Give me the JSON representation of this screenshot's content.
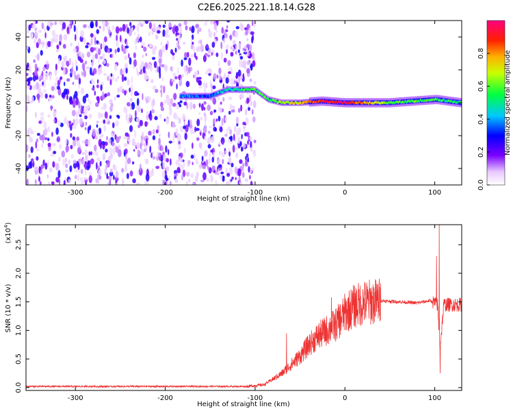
{
  "title": "C2E6.2025.221.18.14.G28",
  "chart_data": [
    {
      "type": "heatmap",
      "title": "C2E6.2025.221.18.14.G28",
      "xlabel": "Height of straight line (km)",
      "ylabel": "Frequency (Hz)",
      "xlim": [
        -355,
        130
      ],
      "ylim": [
        -50,
        50
      ],
      "x_ticks": [
        -300,
        -200,
        -100,
        0,
        100
      ],
      "y_ticks": [
        -40,
        -20,
        0,
        20,
        40
      ],
      "x_tick_labels": [
        "-300",
        "-200",
        "-100",
        "0",
        "100"
      ],
      "y_tick_labels": [
        "-40",
        "-20",
        "0",
        "20",
        "40"
      ],
      "colorbar": {
        "label": "Normalized spectral amplitude",
        "range": [
          0.0,
          1.0
        ],
        "ticks": [
          0.0,
          0.2,
          0.4,
          0.6,
          0.8
        ],
        "tick_labels": [
          "0.0",
          "0.2",
          "0.4",
          "0.6",
          "0.8"
        ],
        "colormap": "rainbow (white, violet, blue, cyan, green, yellow, orange, red, magenta)"
      },
      "noise_region": {
        "x": [
          -355,
          -100
        ],
        "amplitude": [
          0.05,
          0.3
        ]
      },
      "signal_band": {
        "description": "narrow band near 0 Hz emerging around -185 km and strengthening to the right",
        "points": [
          {
            "x": -183,
            "freq": 4,
            "amplitude": 0.4
          },
          {
            "x": -150,
            "freq": 4,
            "amplitude": 0.3
          },
          {
            "x": -130,
            "freq": 8,
            "amplitude": 0.45
          },
          {
            "x": -100,
            "freq": 8,
            "amplitude": 0.6
          },
          {
            "x": -85,
            "freq": 2,
            "amplitude": 0.55
          },
          {
            "x": -70,
            "freq": 0,
            "amplitude": 0.65
          },
          {
            "x": -50,
            "freq": 0,
            "amplitude": 0.75
          },
          {
            "x": -25,
            "freq": 1,
            "amplitude": 0.9
          },
          {
            "x": 0,
            "freq": 0,
            "amplitude": 0.95
          },
          {
            "x": 50,
            "freq": 0,
            "amplitude": 0.6
          },
          {
            "x": 102,
            "freq": 2,
            "amplitude": 0.55
          },
          {
            "x": 130,
            "freq": 0,
            "amplitude": 0.5
          }
        ]
      }
    },
    {
      "type": "line",
      "xlabel": "Height of straight line (km)",
      "ylabel": "SNR (10 * v/v)",
      "multiplier_label": "(x10",
      "multiplier_exponent": "4",
      "multiplier_close": ")",
      "xlim": [
        -355,
        130
      ],
      "ylim": [
        -0.05,
        2.85
      ],
      "x_ticks": [
        -300,
        -200,
        -100,
        0,
        100
      ],
      "y_ticks": [
        0.0,
        0.5,
        1.0,
        1.5,
        2.0,
        2.5
      ],
      "x_tick_labels": [
        "-300",
        "-200",
        "-100",
        "0",
        "100"
      ],
      "y_tick_labels": [
        "0.0",
        "0.5",
        "1.0",
        "1.5",
        "2.0",
        "2.5"
      ],
      "series": [
        {
          "color": "#ee3333",
          "x": [
            -355,
            -300,
            -200,
            -110,
            -90,
            -70,
            -60,
            -50,
            -40,
            -30,
            -20,
            -10,
            0,
            10,
            20,
            40,
            60,
            80,
            95,
            103,
            106,
            110,
            130
          ],
          "y": [
            0.02,
            0.02,
            0.02,
            0.02,
            0.05,
            0.25,
            0.4,
            0.55,
            0.75,
            0.9,
            1.0,
            1.1,
            1.3,
            1.42,
            1.48,
            1.52,
            1.5,
            1.48,
            1.52,
            1.45,
            0.7,
            1.45,
            1.45
          ],
          "spikes": [
            {
              "x": -65,
              "y": 0.95
            },
            {
              "x": -15,
              "y": 1.58
            },
            {
              "x": 102,
              "y": 2.3
            },
            {
              "x": 105,
              "y": 2.85
            },
            {
              "x": 106,
              "y": 0.25
            }
          ]
        }
      ]
    }
  ]
}
